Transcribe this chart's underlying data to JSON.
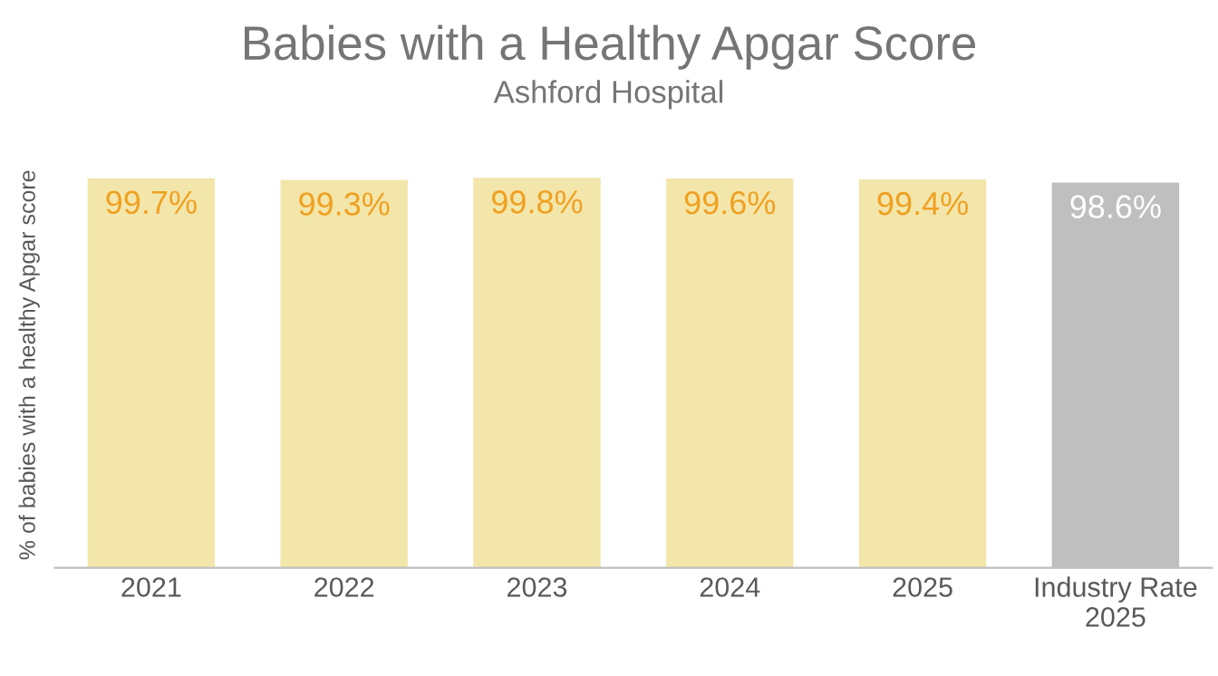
{
  "chart_data": {
    "type": "bar",
    "title": "Babies with a Healthy Apgar Score",
    "subtitle": "Ashford Hospital",
    "ylabel": "% of babies with a healthy Apgar score",
    "categories": [
      "2021",
      "2022",
      "2023",
      "2024",
      "2025",
      "Industry Rate\n2025"
    ],
    "values": [
      99.7,
      99.3,
      99.8,
      99.6,
      99.4,
      98.6
    ],
    "colors": [
      "#f3e6ab",
      "#f3e6ab",
      "#f3e6ab",
      "#f3e6ab",
      "#f3e6ab",
      "#bfbfbf"
    ],
    "value_labels": [
      "99.7%",
      "99.3%",
      "99.8%",
      "99.6%",
      "99.4%",
      "98.6%"
    ],
    "tick_labels": "x",
    "grid": false,
    "legend": false
  }
}
